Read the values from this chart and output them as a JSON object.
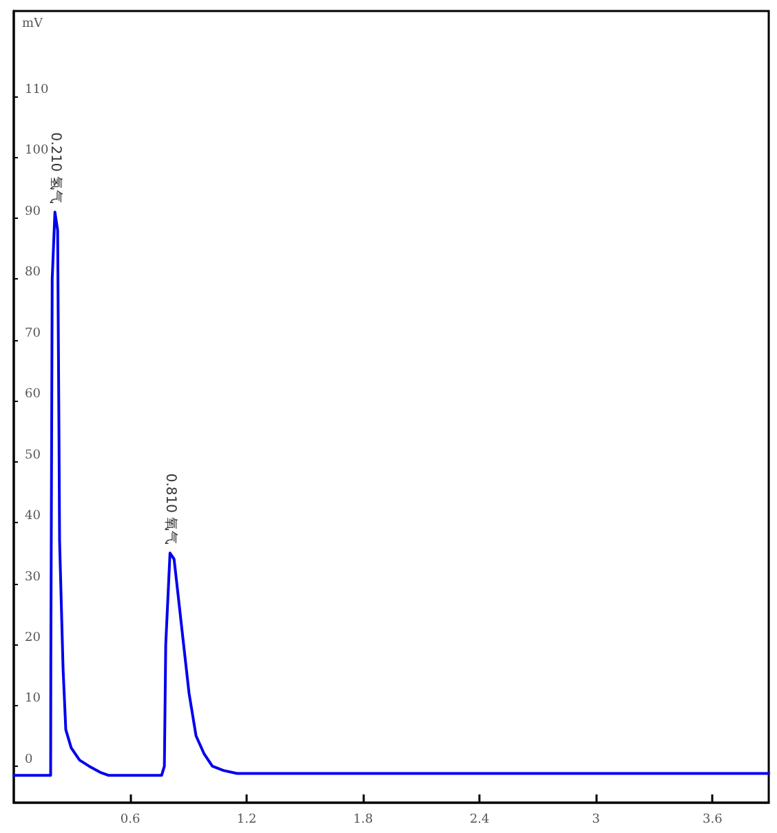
{
  "chart_data": {
    "type": "line",
    "ylabel": "mV",
    "x": [
      0,
      0.19,
      0.191,
      0.198,
      0.212,
      0.226,
      0.233,
      0.236,
      0.254,
      0.268,
      0.296,
      0.339,
      0.388,
      0.445,
      0.487,
      0.762,
      0.776,
      0.783,
      0.805,
      0.826,
      0.847,
      0.875,
      0.903,
      0.939,
      0.981,
      1.023,
      1.08,
      1.15,
      3.89
    ],
    "series": [
      {
        "color": "#0000ee",
        "values": [
          -1.5,
          -1.5,
          18,
          80,
          91,
          88,
          54,
          37,
          16,
          6,
          3,
          1,
          0,
          -1,
          -1.5,
          -1.5,
          0,
          20,
          35,
          34,
          28,
          20,
          12,
          5,
          2,
          0,
          -0.7,
          -1.2,
          -1.2
        ]
      }
    ],
    "annotations": [
      {
        "text": "0.210 氢气",
        "x": 0.212,
        "y": 91
      },
      {
        "text": "0.810 氧气",
        "x": 0.805,
        "y": 35
      }
    ],
    "xlim": [
      0,
      3.89
    ],
    "xticks": [
      0.6,
      1.2,
      1.8,
      2.4,
      3,
      3.6
    ],
    "ylim": [
      -6,
      124
    ],
    "yticks": [
      0,
      10,
      20,
      30,
      40,
      50,
      60,
      70,
      80,
      90,
      100,
      110
    ],
    "grid": false,
    "marker": "none",
    "line_style": "solid"
  }
}
